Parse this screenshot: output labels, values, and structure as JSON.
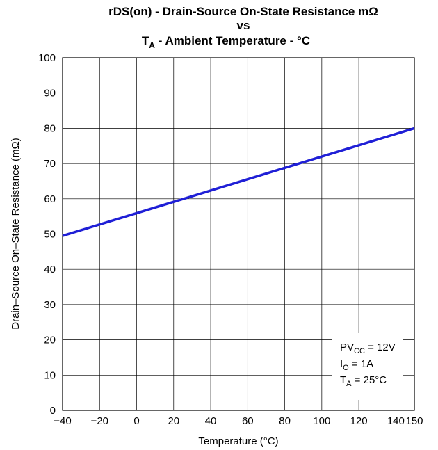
{
  "chart_data": {
    "type": "line",
    "title": {
      "line1": "rDS(on) - Drain-Source On-State Resistance mΩ",
      "line2": "vs",
      "line3_main": "T",
      "line3_sub": "A",
      "line3_rest": " - Ambient Temperature - °C"
    },
    "xlabel": "Temperature (°C)",
    "ylabel": "Drain–Source On–State Resistance (mΩ)",
    "xlim": [
      -40,
      150
    ],
    "ylim": [
      0,
      100
    ],
    "x_ticks": [
      {
        "value": -40,
        "label": "−40"
      },
      {
        "value": -20,
        "label": "−20"
      },
      {
        "value": 0,
        "label": "0"
      },
      {
        "value": 20,
        "label": "20"
      },
      {
        "value": 40,
        "label": "40"
      },
      {
        "value": 60,
        "label": "60"
      },
      {
        "value": 80,
        "label": "80"
      },
      {
        "value": 100,
        "label": "100"
      },
      {
        "value": 120,
        "label": "120"
      },
      {
        "value": 140,
        "label": "140"
      },
      {
        "value": 150,
        "label": "150"
      }
    ],
    "y_ticks": [
      0,
      10,
      20,
      30,
      40,
      50,
      60,
      70,
      80,
      90,
      100
    ],
    "grid": true,
    "series": [
      {
        "color": "#1f1fd6",
        "x": [
          -40,
          150
        ],
        "y": [
          49.5,
          80
        ]
      }
    ],
    "annotations": [
      {
        "main": "PV",
        "sub": "CC",
        "rest": " = 12V"
      },
      {
        "main": "I",
        "sub": "O",
        "rest": " = 1A"
      },
      {
        "main": "T",
        "sub": "A",
        "rest": " = 25°C"
      }
    ],
    "annotation_position": "bottom-right"
  }
}
